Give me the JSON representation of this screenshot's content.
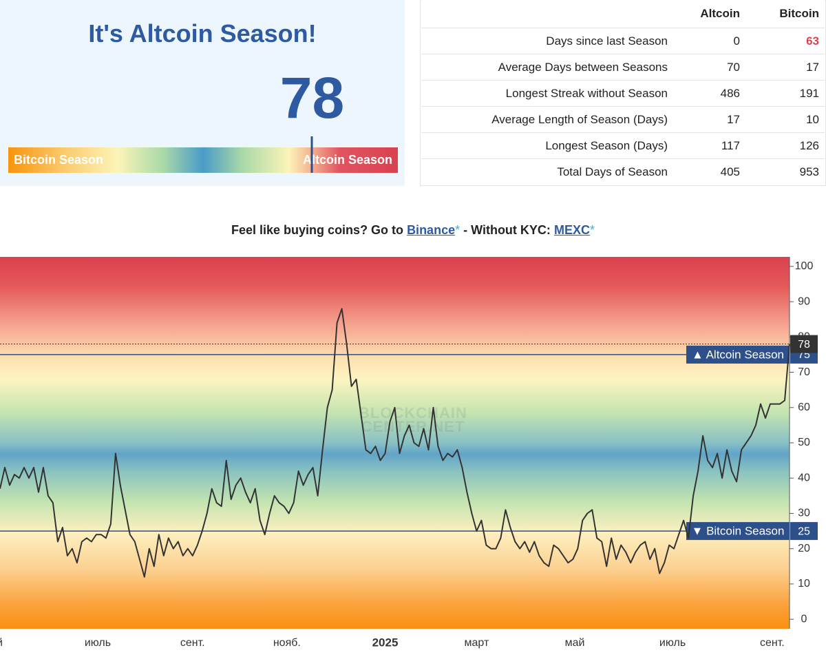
{
  "header": {
    "title": "It's Altcoin Season!",
    "value": 78,
    "scale": [
      0,
      100
    ],
    "left_label": "Bitcoin Season",
    "right_label": "Altcoin Season"
  },
  "table": {
    "columns": [
      "Altcoin",
      "Bitcoin"
    ],
    "rows": [
      {
        "label": "Days since last Season",
        "values": [
          0,
          63
        ]
      },
      {
        "label": "Average Days between Seasons",
        "values": [
          70,
          17
        ]
      },
      {
        "label": "Longest Streak without Season",
        "values": [
          486,
          191
        ]
      },
      {
        "label": "Average Length of Season (Days)",
        "values": [
          17,
          10
        ]
      },
      {
        "label": "Longest Season (Days)",
        "values": [
          117,
          126
        ]
      },
      {
        "label": "Total Days of Season",
        "values": [
          405,
          953
        ]
      }
    ]
  },
  "promo": {
    "text": "Feel like buying coins? Go to",
    "link1": "Binance",
    "star": "*",
    "sep": "- Without KYC:",
    "link2": "MEXC"
  },
  "chart_data": {
    "type": "line",
    "color": "#333333",
    "watermark": [
      "BLOCKCHAIN",
      "CENTER.NET"
    ],
    "values": [
      37,
      43,
      38,
      41,
      40,
      43,
      40,
      43,
      36,
      43,
      35,
      33,
      22,
      26,
      18,
      20,
      16,
      22,
      23,
      22,
      24,
      24,
      23,
      27,
      47,
      38,
      31,
      24,
      22,
      17,
      12,
      20,
      15,
      24,
      18,
      23,
      20,
      22,
      18,
      20,
      18,
      21,
      25,
      30,
      37,
      33,
      32,
      45,
      34,
      38,
      40,
      36,
      33,
      37,
      28,
      24,
      30,
      35,
      33,
      32,
      30,
      33,
      42,
      38,
      41,
      43,
      35,
      48,
      60,
      65,
      84,
      88,
      78,
      66,
      68,
      58,
      48,
      47,
      49,
      45,
      47,
      56,
      60,
      47,
      52,
      55,
      50,
      49,
      54,
      48,
      60,
      49,
      45,
      47,
      46,
      48,
      43,
      36,
      30,
      25,
      28,
      21,
      20,
      20,
      23,
      31,
      26,
      22,
      20,
      22,
      19,
      22,
      18,
      16,
      15,
      21,
      20,
      18,
      16,
      17,
      20,
      28,
      30,
      31,
      23,
      22,
      15,
      23,
      17,
      21,
      19,
      16,
      19,
      21,
      22,
      17,
      20,
      13,
      16,
      21,
      20,
      24,
      28,
      23,
      35,
      42,
      52,
      45,
      43,
      47,
      40,
      48,
      42,
      39,
      48,
      50,
      52,
      55,
      61,
      57,
      61,
      61,
      61,
      62,
      78
    ],
    "xlim": [
      0,
      164
    ],
    "ylim": [
      -2.7,
      102.7
    ],
    "yticks": [
      0,
      10,
      20,
      30,
      40,
      50,
      60,
      70,
      80,
      90,
      100
    ],
    "xticks": [
      {
        "value": -1.5,
        "label": "май"
      },
      {
        "value": 20.3,
        "label": "июль"
      },
      {
        "value": 40,
        "label": "сент."
      },
      {
        "value": 59.6,
        "label": "нояб."
      },
      {
        "value": 80,
        "label": "2025"
      },
      {
        "value": 99,
        "label": "март"
      },
      {
        "value": 119.4,
        "label": "май"
      },
      {
        "value": 139.7,
        "label": "июль"
      },
      {
        "value": 160.4,
        "label": "сент."
      }
    ],
    "levels": [
      {
        "label": "▲ Altcoin Season",
        "value": 75,
        "color": "#2d4f8a"
      },
      {
        "label": "▼ Bitcoin Season",
        "value": 25,
        "color": "#2d4f8a"
      }
    ],
    "grid": false
  }
}
